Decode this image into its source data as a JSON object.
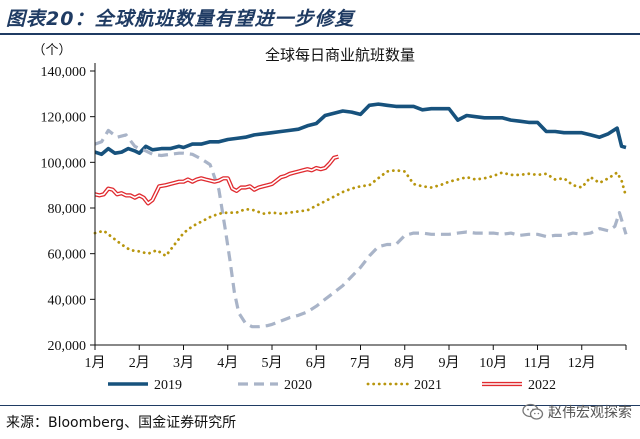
{
  "figure_title": "图表20：全球航班数量有望进一步修复",
  "source_text": "来源：Bloomberg、国金证券研究所",
  "watermark_text": "赵伟宏观探索",
  "chart_data": {
    "type": "line",
    "title": "全球每日商业航班数量",
    "ylabel": "（个）",
    "xlabel": "",
    "ylim": [
      20000,
      140000
    ],
    "yticks": [
      20000,
      40000,
      60000,
      80000,
      100000,
      120000,
      140000
    ],
    "ytick_labels": [
      "20,000",
      "40,000",
      "60,000",
      "80,000",
      "100,000",
      "120,000",
      "140,000"
    ],
    "xlim": [
      1,
      13
    ],
    "xticks": [
      1,
      2,
      3,
      4,
      5,
      6,
      7,
      8,
      9,
      10,
      11,
      12
    ],
    "xtick_labels": [
      "1月",
      "2月",
      "3月",
      "4月",
      "5月",
      "6月",
      "7月",
      "8月",
      "9月",
      "10月",
      "11月",
      "12月"
    ],
    "grid": false,
    "legend_position": "bottom",
    "series": [
      {
        "name": "2019",
        "color": "#17527d",
        "style": "solid",
        "x": [
          1.0,
          1.15,
          1.3,
          1.45,
          1.6,
          1.75,
          1.9,
          2.0,
          2.15,
          2.3,
          2.5,
          2.7,
          2.9,
          3.0,
          3.2,
          3.4,
          3.6,
          3.8,
          4.0,
          4.2,
          4.4,
          4.6,
          4.8,
          5.0,
          5.2,
          5.4,
          5.6,
          5.8,
          6.0,
          6.2,
          6.4,
          6.6,
          6.8,
          7.0,
          7.2,
          7.4,
          7.6,
          7.8,
          8.0,
          8.2,
          8.4,
          8.6,
          8.8,
          9.0,
          9.2,
          9.4,
          9.6,
          9.8,
          10.0,
          10.2,
          10.4,
          10.6,
          10.8,
          11.0,
          11.2,
          11.4,
          11.6,
          11.8,
          12.0,
          12.2,
          12.4,
          12.6,
          12.8,
          12.9,
          13.0
        ],
        "values": [
          104500,
          103500,
          106000,
          104000,
          104500,
          106000,
          105000,
          104000,
          107000,
          105500,
          106000,
          106000,
          107000,
          106500,
          108000,
          108000,
          109000,
          109000,
          110000,
          110500,
          111000,
          112000,
          112500,
          113000,
          113500,
          114000,
          114500,
          116000,
          117000,
          120500,
          121500,
          122500,
          122000,
          121000,
          125000,
          125500,
          125000,
          124500,
          124500,
          124500,
          123000,
          123500,
          123500,
          123500,
          118500,
          120500,
          120000,
          119500,
          119500,
          119500,
          118500,
          118000,
          117500,
          117500,
          113500,
          113500,
          113000,
          113000,
          113000,
          112000,
          111000,
          112500,
          115000,
          107000,
          106500
        ]
      },
      {
        "name": "2020",
        "color": "#a9b4c8",
        "style": "dashed",
        "x": [
          1.0,
          1.15,
          1.3,
          1.5,
          1.7,
          1.9,
          2.0,
          2.15,
          2.3,
          2.5,
          2.7,
          2.9,
          3.0,
          3.2,
          3.4,
          3.6,
          3.8,
          3.95,
          4.05,
          4.15,
          4.25,
          4.4,
          4.55,
          4.7,
          4.9,
          5.0,
          5.2,
          5.4,
          5.6,
          5.8,
          6.0,
          6.2,
          6.4,
          6.6,
          6.8,
          7.0,
          7.2,
          7.4,
          7.6,
          7.8,
          8.0,
          8.2,
          8.4,
          8.6,
          8.8,
          9.0,
          9.2,
          9.4,
          9.6,
          9.8,
          10.0,
          10.2,
          10.4,
          10.6,
          10.8,
          11.0,
          11.2,
          11.4,
          11.6,
          11.8,
          12.0,
          12.2,
          12.4,
          12.6,
          12.75,
          12.85,
          13.0
        ],
        "values": [
          108000,
          109000,
          114000,
          111000,
          112000,
          107000,
          106000,
          105000,
          103500,
          103000,
          103500,
          104000,
          104000,
          103500,
          101500,
          99000,
          88000,
          70000,
          57000,
          43000,
          34000,
          29500,
          28000,
          28000,
          28500,
          29000,
          30500,
          32000,
          33000,
          34500,
          37000,
          40000,
          43000,
          46000,
          50000,
          54000,
          59000,
          63000,
          64000,
          64000,
          68000,
          69000,
          69000,
          68500,
          68500,
          68500,
          69000,
          69500,
          69000,
          69000,
          69000,
          68500,
          69000,
          68000,
          68500,
          68500,
          67500,
          68000,
          68000,
          69000,
          68500,
          69000,
          71000,
          70000,
          72000,
          78000,
          68500
        ]
      },
      {
        "name": "2021",
        "color": "#b8960e",
        "style": "dotted",
        "x": [
          1.0,
          1.2,
          1.4,
          1.6,
          1.8,
          2.0,
          2.2,
          2.4,
          2.6,
          2.8,
          3.0,
          3.2,
          3.4,
          3.6,
          3.8,
          4.0,
          4.2,
          4.4,
          4.6,
          4.8,
          5.0,
          5.2,
          5.4,
          5.6,
          5.8,
          6.0,
          6.2,
          6.4,
          6.6,
          6.8,
          7.0,
          7.2,
          7.4,
          7.6,
          7.8,
          8.0,
          8.2,
          8.4,
          8.6,
          8.8,
          9.0,
          9.2,
          9.4,
          9.6,
          9.8,
          10.0,
          10.2,
          10.4,
          10.6,
          10.8,
          11.0,
          11.2,
          11.4,
          11.6,
          11.8,
          12.0,
          12.2,
          12.4,
          12.6,
          12.8,
          12.9,
          13.0
        ],
        "values": [
          69000,
          70000,
          67000,
          64000,
          61500,
          61000,
          60000,
          61500,
          59000,
          64000,
          69000,
          72000,
          74000,
          76000,
          77500,
          78000,
          78000,
          79500,
          79000,
          77500,
          78000,
          77500,
          78000,
          78500,
          79000,
          81000,
          83000,
          85000,
          87000,
          88500,
          89500,
          90000,
          93000,
          96000,
          96500,
          96000,
          90500,
          89500,
          89000,
          90000,
          91500,
          92500,
          93500,
          92500,
          93000,
          94000,
          95500,
          94500,
          94500,
          95000,
          94500,
          95000,
          92500,
          93000,
          90000,
          89000,
          93500,
          91000,
          93000,
          95500,
          92000,
          85000
        ]
      },
      {
        "name": "2022",
        "color": "#e02a2f",
        "style": "double",
        "x": [
          1.0,
          1.1,
          1.2,
          1.3,
          1.4,
          1.5,
          1.6,
          1.7,
          1.8,
          1.9,
          2.0,
          2.1,
          2.2,
          2.3,
          2.45,
          2.6,
          2.7,
          2.8,
          2.9,
          3.0,
          3.1,
          3.2,
          3.3,
          3.4,
          3.5,
          3.6,
          3.7,
          3.8,
          3.9,
          4.0,
          4.1,
          4.2,
          4.3,
          4.4,
          4.5,
          4.6,
          4.7,
          4.8,
          4.9,
          5.0,
          5.1,
          5.2,
          5.3,
          5.4,
          5.5,
          5.6,
          5.7,
          5.8,
          5.9,
          6.0,
          6.1,
          6.2,
          6.3,
          6.4,
          6.5
        ],
        "values": [
          86000,
          85500,
          86000,
          88500,
          88000,
          86000,
          86500,
          85500,
          85500,
          84500,
          85500,
          84500,
          82000,
          83500,
          89500,
          90000,
          90500,
          91000,
          91500,
          91500,
          92500,
          91500,
          92500,
          93000,
          92500,
          92000,
          91500,
          92000,
          93000,
          93000,
          88500,
          87500,
          89000,
          89000,
          89500,
          88000,
          89000,
          89500,
          90000,
          90500,
          92000,
          93500,
          94000,
          95000,
          95500,
          96000,
          96500,
          97000,
          96500,
          97500,
          97000,
          97500,
          99500,
          102000,
          102500
        ]
      }
    ]
  }
}
